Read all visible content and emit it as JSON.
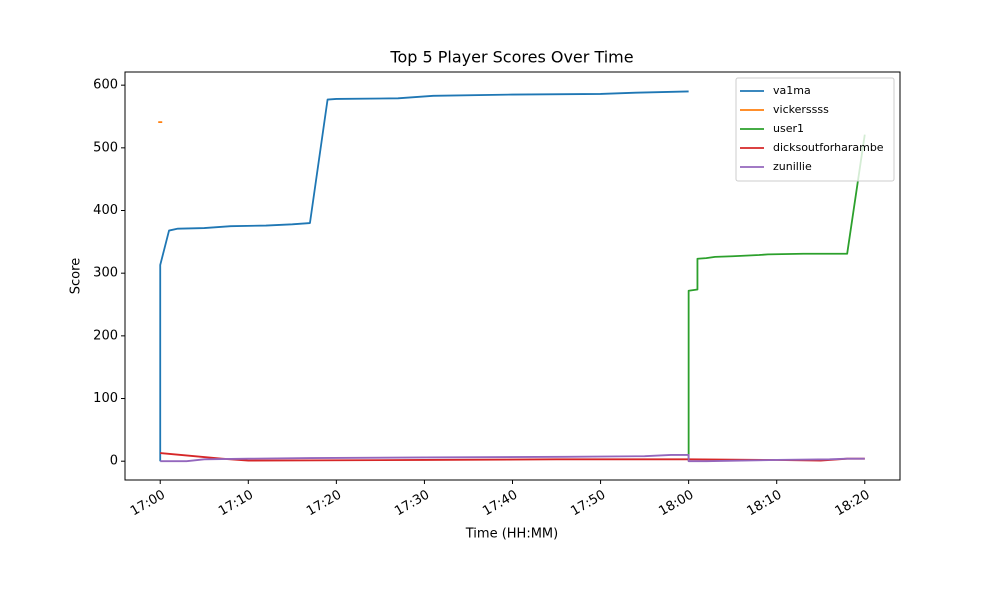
{
  "chart_data": {
    "type": "line",
    "title": "Top 5 Player Scores Over Time",
    "xlabel": "Time (HH:MM)",
    "ylabel": "Score",
    "xlim": [
      "16:56",
      "18:24"
    ],
    "xticks": [
      "17:00",
      "17:10",
      "17:20",
      "17:30",
      "17:40",
      "17:50",
      "18:00",
      "18:10",
      "18:20"
    ],
    "ylim": [
      -30,
      621
    ],
    "yticks": [
      0,
      100,
      200,
      300,
      400,
      500,
      600
    ],
    "legend": "upper right",
    "grid": false,
    "series": [
      {
        "name": "va1ma",
        "color": "#1f77b4",
        "x": [
          "17:00",
          "17:00",
          "17:00",
          "17:01",
          "17:02",
          "17:05",
          "17:08",
          "17:12",
          "17:15",
          "17:17",
          "17:19",
          "17:20",
          "17:27",
          "17:30",
          "17:31",
          "17:40",
          "17:50",
          "17:54",
          "18:00"
        ],
        "values": [
          0,
          172,
          313,
          368,
          371,
          372,
          375,
          376,
          378,
          380,
          577,
          578,
          579,
          582,
          583,
          585,
          586,
          588,
          590
        ]
      },
      {
        "name": "vickerssss",
        "color": "#ff7f0e",
        "x": [
          "17:00"
        ],
        "values": [
          541
        ]
      },
      {
        "name": "user1",
        "color": "#2ca02c",
        "x": [
          "18:00",
          "18:00",
          "18:00",
          "18:01",
          "18:01",
          "18:02",
          "18:03",
          "18:05",
          "18:08",
          "18:09",
          "18:13",
          "18:18",
          "18:20"
        ],
        "values": [
          0,
          137,
          272,
          274,
          323,
          324,
          326,
          327,
          329,
          330,
          331,
          331,
          521
        ]
      },
      {
        "name": "dicksoutforharambe",
        "color": "#d62728",
        "x": [
          "17:00",
          "17:07",
          "17:10",
          "17:30",
          "17:45",
          "18:00",
          "18:10",
          "18:15",
          "18:18",
          "18:20"
        ],
        "values": [
          13,
          4,
          1,
          2,
          3,
          3,
          2,
          1,
          4,
          4
        ]
      },
      {
        "name": "zunillie",
        "color": "#9467bd",
        "x": [
          "17:00",
          "17:03",
          "17:05",
          "17:10",
          "17:17",
          "17:30",
          "17:46",
          "17:55",
          "17:58",
          "18:00",
          "18:00",
          "18:02",
          "18:10",
          "18:16",
          "18:18",
          "18:20"
        ],
        "values": [
          0,
          0,
          3,
          4,
          5,
          6,
          7,
          8,
          10,
          10,
          0,
          0,
          2,
          3,
          4,
          4
        ]
      }
    ]
  }
}
